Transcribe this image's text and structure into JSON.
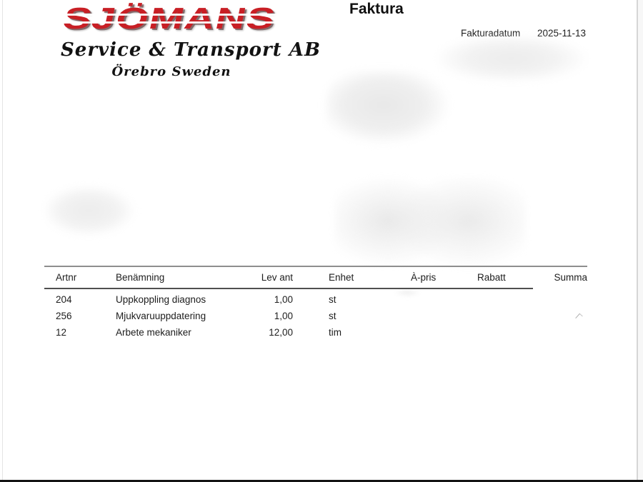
{
  "logo": {
    "brand": "SJÖMANS",
    "subtitle": "Service & Transport AB",
    "location": "Örebro Sweden",
    "brand_color": "#c81f25"
  },
  "page": {
    "title": "Faktura",
    "date_label": "Fakturadatum",
    "date_value": "2025-11-13"
  },
  "table": {
    "headers": [
      "Artnr",
      "Benämning",
      "Lev ant",
      "Enhet",
      "À-pris",
      "Rabatt",
      "Summa"
    ],
    "rows": [
      {
        "artnr": "204",
        "benamning": "Uppkoppling diagnos",
        "lev_ant": "1,00",
        "enhet": "st"
      },
      {
        "artnr": "256",
        "benamning": "Mjukvaruuppdatering",
        "lev_ant": "1,00",
        "enhet": "st"
      },
      {
        "artnr": "12",
        "benamning": "Arbete mekaniker",
        "lev_ant": "12,00",
        "enhet": "tim"
      }
    ]
  },
  "colors": {
    "table_top_rule": "#8e8e8e",
    "table_header_rule": "#4f4f4f",
    "text": "#1d1d1d"
  }
}
